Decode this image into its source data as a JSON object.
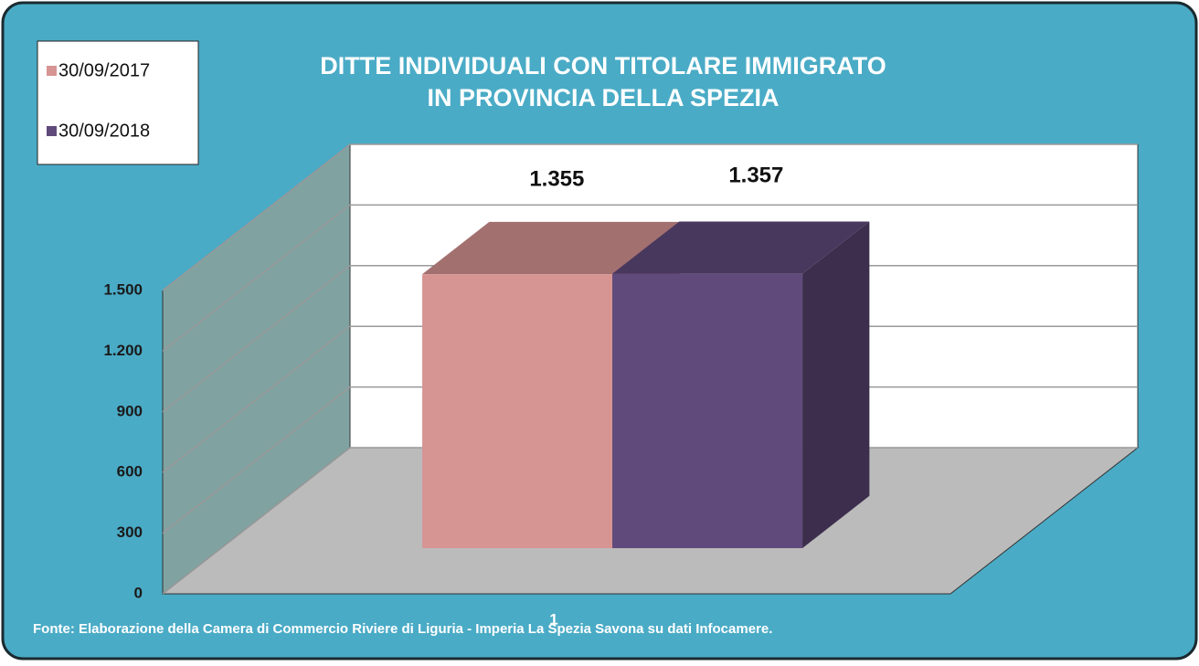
{
  "chart_data": {
    "type": "bar3d",
    "title": [
      "DITTE INDIVIDUALI CON TITOLARE IMMIGRATO",
      "IN PROVINCIA DELLA SPEZIA"
    ],
    "categories": [
      "1"
    ],
    "series": [
      {
        "name": "30/09/2017",
        "color": "#d69493",
        "values": [
          1355
        ],
        "value_labels": [
          "1.355"
        ]
      },
      {
        "name": "30/09/2018",
        "color": "#604a7b",
        "values": [
          1357
        ],
        "value_labels": [
          "1.357"
        ]
      }
    ],
    "ylim": [
      0,
      1500
    ],
    "yticks": [
      0,
      300,
      600,
      900,
      {
        "value": 1200,
        "label": "1.200"
      },
      {
        "value": 1500,
        "label": "1.500"
      }
    ],
    "grid": true,
    "legend": "top-left",
    "source": "Fonte: Elaborazione  della Camera di Commercio Riviere di Liguria - Imperia La Spezia Savona su dati Infocamere."
  }
}
